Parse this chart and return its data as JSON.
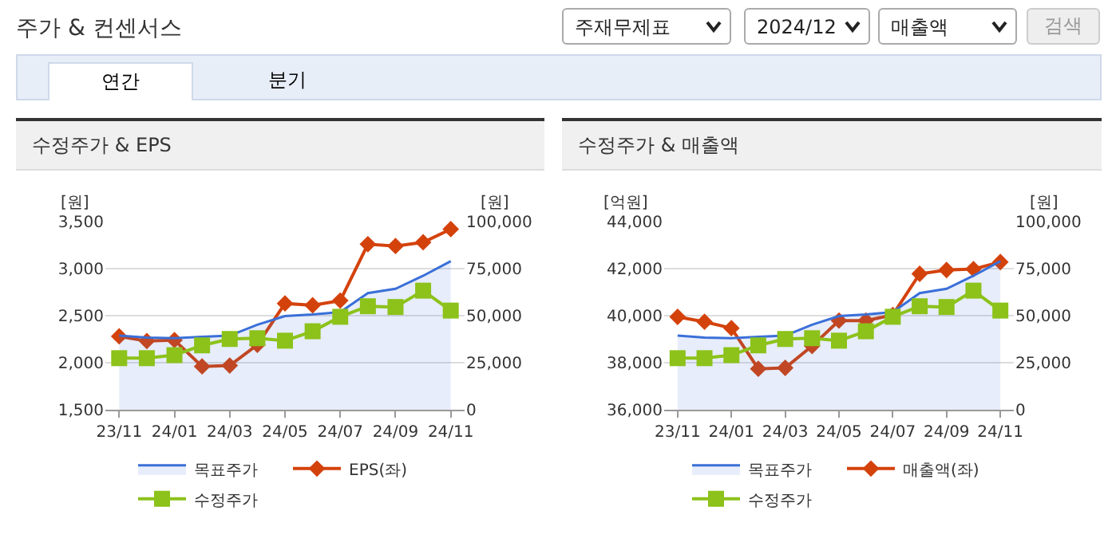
{
  "chart_data": [
    {
      "type": "other",
      "title": "주가 & 컨센서스",
      "annotations": [
        "주재무제표",
        "2024/12",
        "매출액",
        "검색",
        "연간",
        "분기"
      ]
    },
    {
      "type": "line",
      "title": "수정주가 & EPS",
      "ylabel": "[원]",
      "y2label": "[원]",
      "categories": [
        "23/11",
        null,
        "24/01",
        null,
        "24/03",
        null,
        "24/05",
        null,
        "24/07",
        null,
        "24/09",
        null,
        "24/11"
      ],
      "series": [
        {
          "name": "목표주가",
          "type": "area",
          "axis": "y2",
          "color": "#3a6fd8",
          "marker": "none",
          "values": [
            39400,
            38400,
            38000,
            38800,
            39400,
            45200,
            49800,
            50600,
            51900,
            62000,
            64300,
            71200,
            79000
          ]
        },
        {
          "name": "EPS(좌)",
          "type": "line",
          "color": "#d4420c",
          "marker": "diamond",
          "values": [
            2280,
            2230,
            2240,
            1960,
            1970,
            2190,
            2630,
            2610,
            2660,
            3260,
            3240,
            3280,
            3420
          ]
        },
        {
          "name": "수정주가",
          "type": "line",
          "axis": "y2",
          "color": "#8cc21a",
          "marker": "square",
          "values": [
            27400,
            27400,
            29000,
            34200,
            37600,
            38000,
            36700,
            41700,
            49400,
            55000,
            54600,
            63300,
            52700
          ]
        }
      ],
      "ylim": [
        1500,
        3500
      ],
      "yticks": [
        {
          "value": 1500,
          "label": "1,500"
        },
        {
          "value": 2000,
          "label": "2,000"
        },
        {
          "value": 2500,
          "label": "2,500"
        },
        {
          "value": 3000,
          "label": "3,000"
        },
        {
          "value": 3500,
          "label": "3,500"
        }
      ],
      "y2lim": [
        0,
        100000
      ],
      "y2ticks": [
        0,
        {
          "value": 25000,
          "label": "25,000"
        },
        {
          "value": 50000,
          "label": "50,000"
        },
        {
          "value": 75000,
          "label": "75,000"
        },
        {
          "value": 100000,
          "label": "100,000"
        }
      ],
      "grid": "y",
      "legend": "bottom"
    },
    {
      "type": "line",
      "title": "수정주가 & 매출액",
      "ylabel": "[억원]",
      "y2label": "[원]",
      "categories": [
        "23/11",
        null,
        "24/01",
        null,
        "24/03",
        null,
        "24/05",
        null,
        "24/07",
        null,
        "24/09",
        null,
        "24/11"
      ],
      "series": [
        {
          "name": "목표주가",
          "type": "area",
          "axis": "y2",
          "color": "#3a6fd8",
          "marker": "none",
          "values": [
            39400,
            38400,
            38000,
            38800,
            39400,
            45200,
            49800,
            50600,
            51900,
            62000,
            64300,
            71200,
            79000
          ]
        },
        {
          "name": "매출액(좌)",
          "type": "line",
          "color": "#d4420c",
          "marker": "diamond",
          "values": [
            39950,
            39740,
            39470,
            37740,
            37780,
            38710,
            39790,
            39790,
            40030,
            41780,
            41940,
            41980,
            42280
          ]
        },
        {
          "name": "수정주가",
          "type": "line",
          "axis": "y2",
          "color": "#8cc21a",
          "marker": "square",
          "values": [
            27400,
            27400,
            29000,
            34200,
            37600,
            38000,
            36700,
            41700,
            49400,
            55000,
            54600,
            63300,
            52700
          ]
        }
      ],
      "ylim": [
        36000,
        44000
      ],
      "yticks": [
        {
          "value": 36000,
          "label": "36,000"
        },
        {
          "value": 38000,
          "label": "38,000"
        },
        {
          "value": 40000,
          "label": "40,000"
        },
        {
          "value": 42000,
          "label": "42,000"
        },
        {
          "value": 44000,
          "label": "44,000"
        }
      ],
      "y2lim": [
        0,
        100000
      ],
      "y2ticks": [
        0,
        {
          "value": 25000,
          "label": "25,000"
        },
        {
          "value": 50000,
          "label": "50,000"
        },
        {
          "value": 75000,
          "label": "75,000"
        },
        {
          "value": 100000,
          "label": "100,000"
        }
      ],
      "grid": "y",
      "legend": "bottom"
    }
  ]
}
